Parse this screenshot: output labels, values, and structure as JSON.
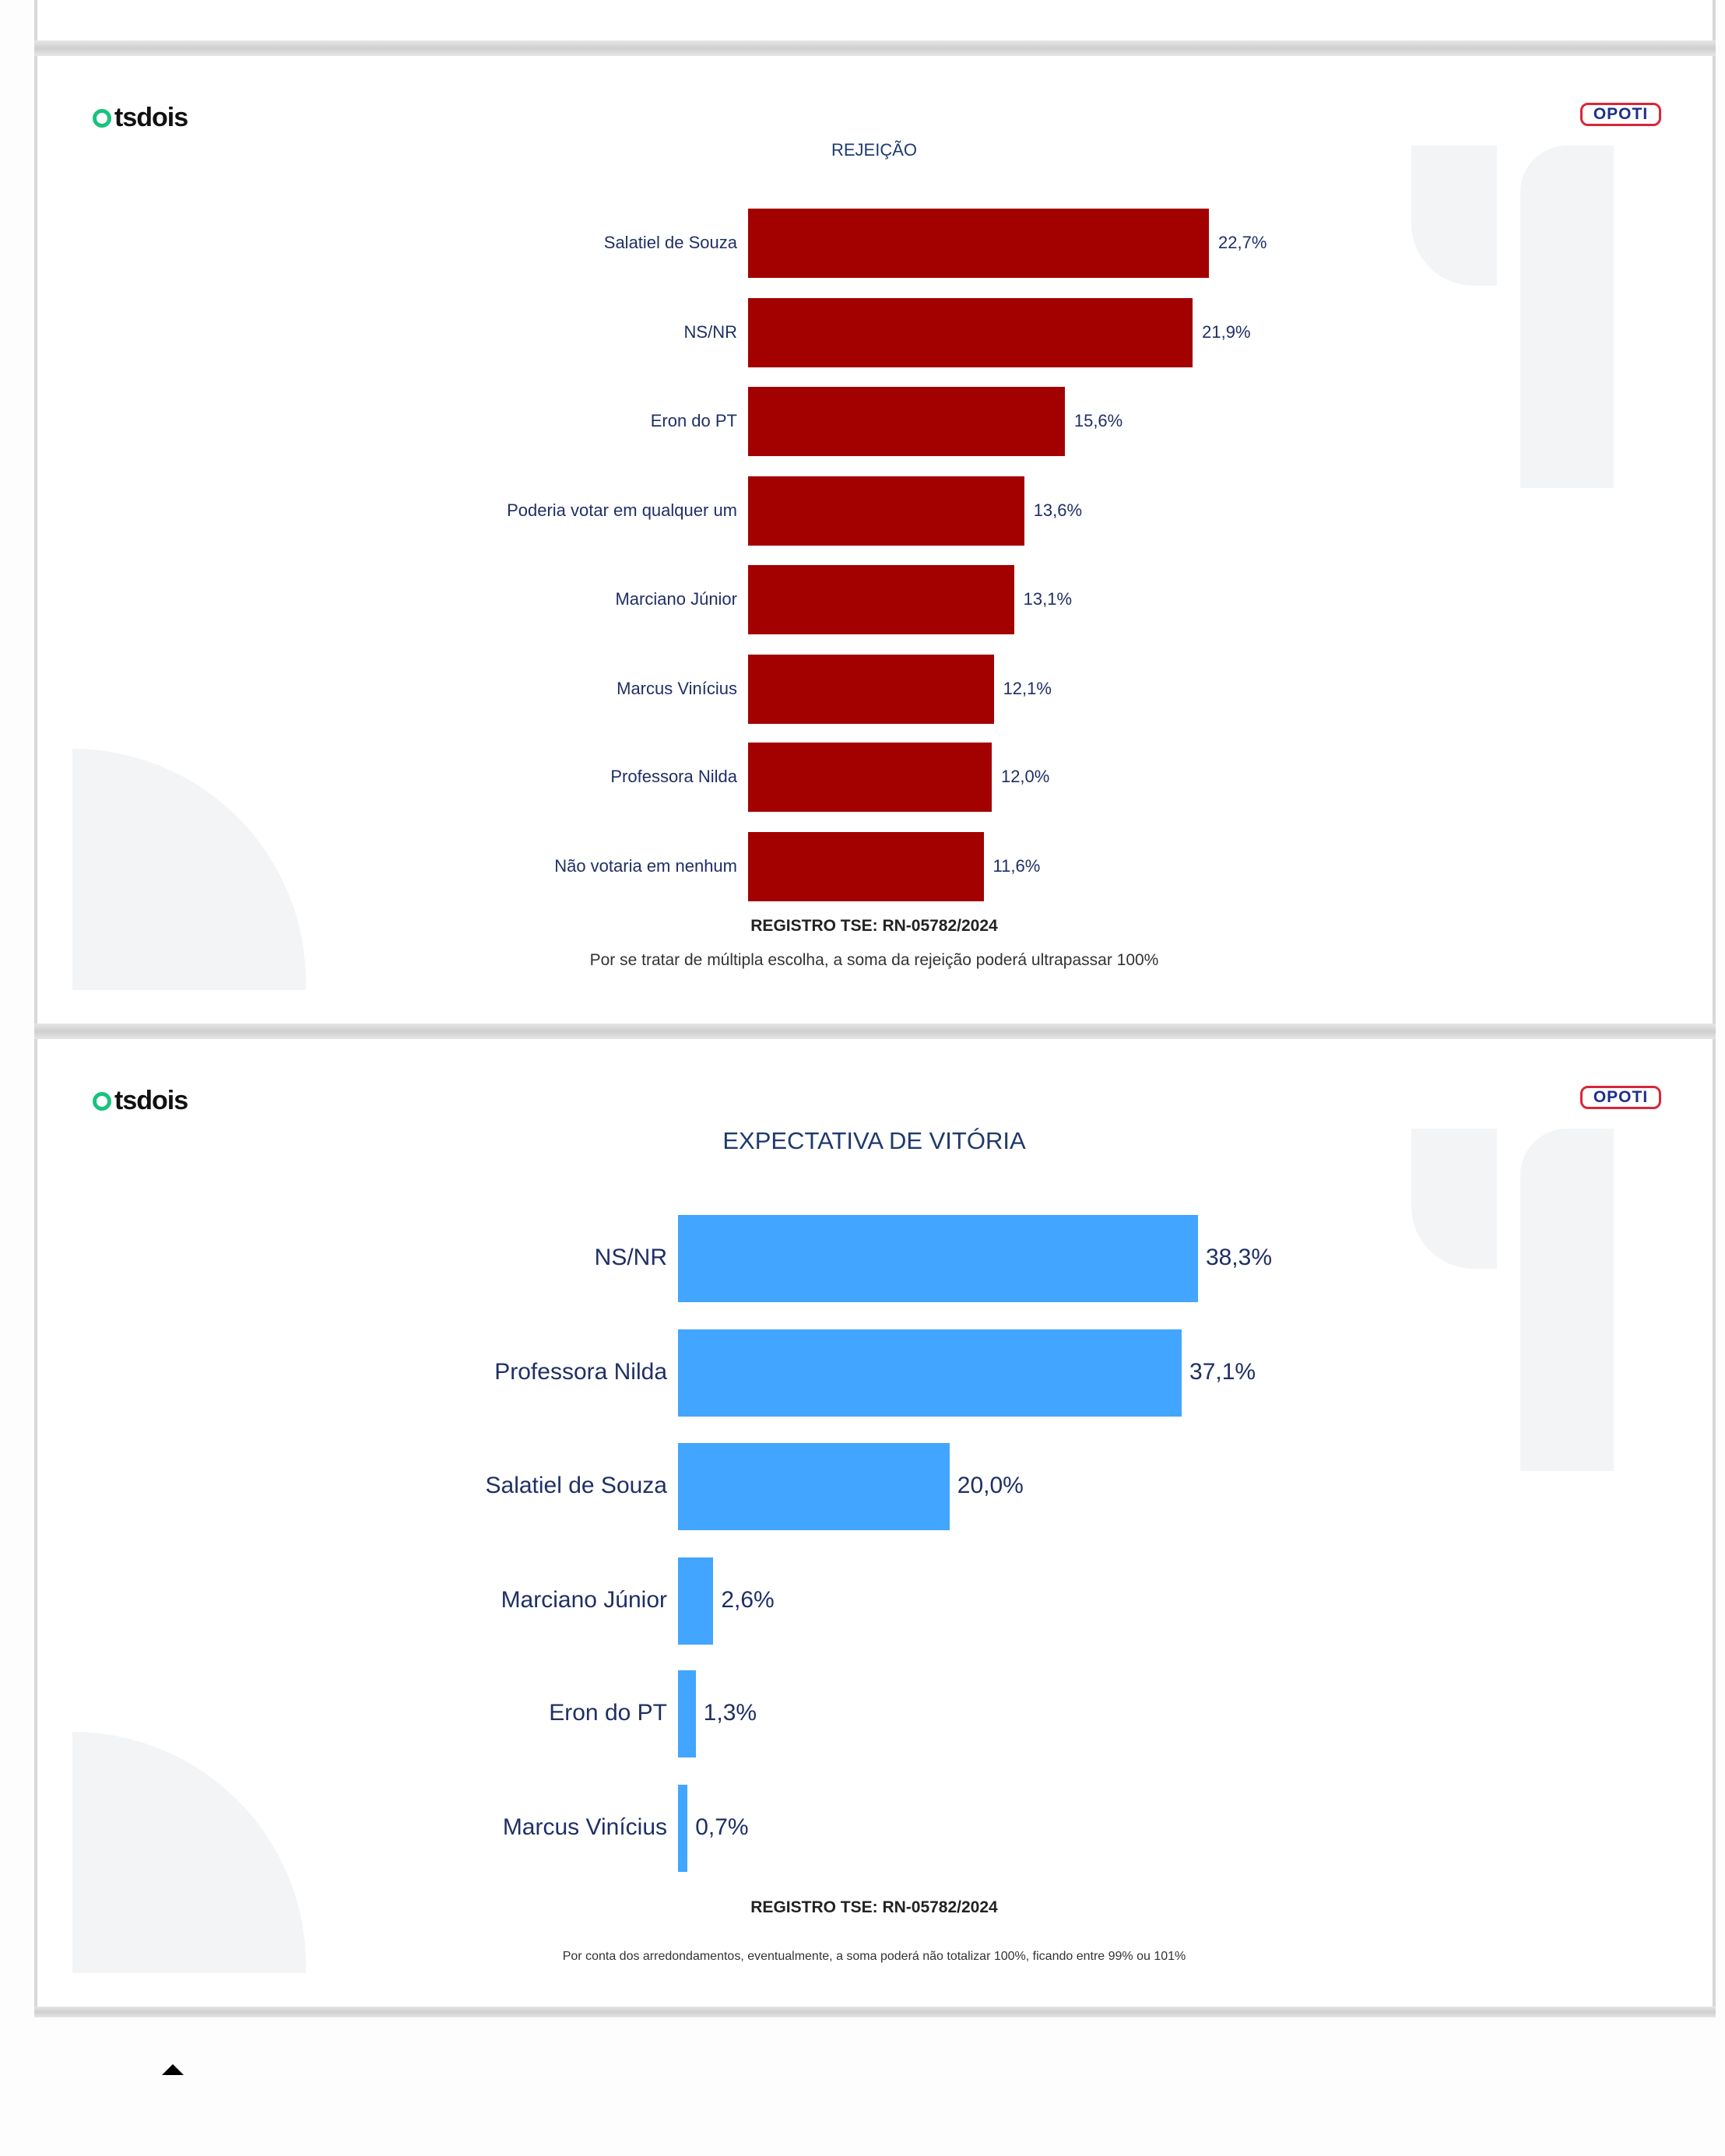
{
  "logos": {
    "left": "tsdois",
    "right": "OPOTI"
  },
  "colors": {
    "rejeicao_bar": "#a30000",
    "expectativa_bar": "#42a5ff",
    "text": "#1f2f66"
  },
  "chart_data": [
    {
      "type": "bar",
      "orientation": "horizontal",
      "title": "REJEIÇÃO",
      "categories": [
        "Salatiel de Souza",
        "NS/NR",
        "Eron do PT",
        "Poderia votar em qualquer um",
        "Marciano Júnior",
        "Marcus Vinícius",
        "Professora Nilda",
        "Não votaria em nenhum"
      ],
      "values": [
        22.7,
        21.9,
        15.6,
        13.6,
        13.1,
        12.1,
        12.0,
        11.6
      ],
      "value_labels": [
        "22,7%",
        "21,9%",
        "15,6%",
        "13,6%",
        "13,1%",
        "12,1%",
        "12,0%",
        "11,6%"
      ],
      "registro": "REGISTRO TSE: RN-05782/2024",
      "note": "Por se tratar de múltipla escolha, a soma da rejeição poderá ultrapassar 100%"
    },
    {
      "type": "bar",
      "orientation": "horizontal",
      "title": "EXPECTATIVA DE VITÓRIA",
      "categories": [
        "NS/NR",
        "Professora Nilda",
        "Salatiel de Souza",
        "Marciano Júnior",
        "Eron do PT",
        "Marcus Vinícius"
      ],
      "values": [
        38.3,
        37.1,
        20.0,
        2.6,
        1.3,
        0.7
      ],
      "value_labels": [
        "38,3%",
        "37,1%",
        "20,0%",
        "2,6%",
        "1,3%",
        "0,7%"
      ],
      "registro": "REGISTRO TSE: RN-05782/2024",
      "note": "Por conta dos arredondamentos, eventualmente, a soma poderá não totalizar 100%, ficando entre 99% ou 101%"
    }
  ]
}
